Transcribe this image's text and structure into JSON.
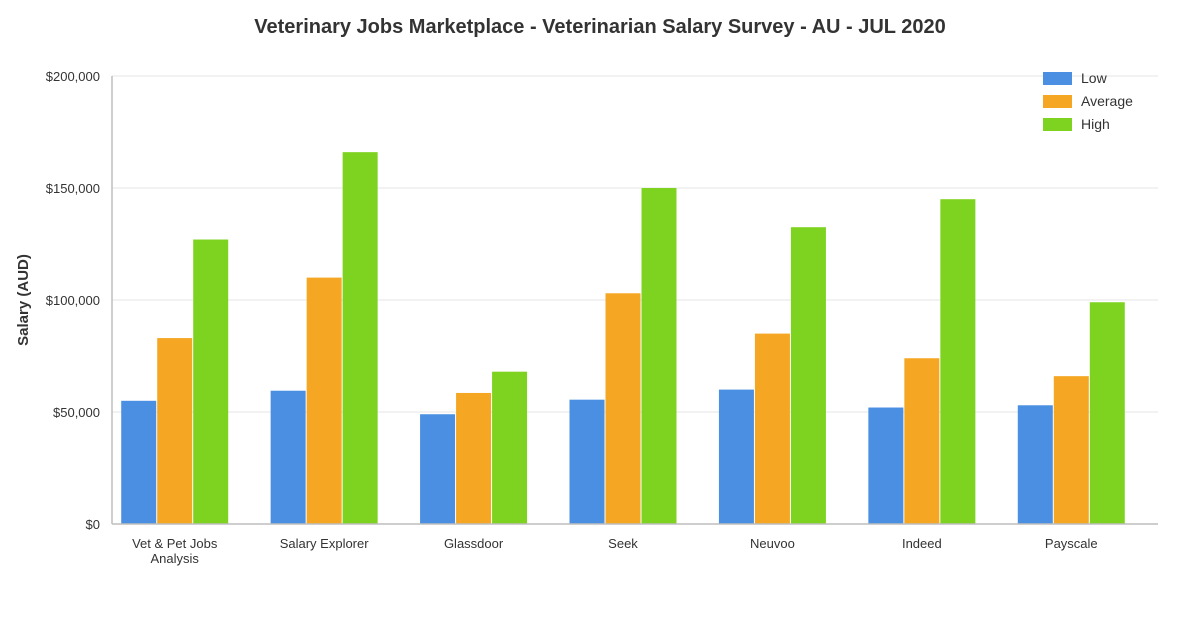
{
  "chart_data": {
    "type": "bar",
    "title": "Veterinary Jobs Marketplace - Veterinarian Salary Survey - AU - JUL 2020",
    "xlabel": "",
    "ylabel": "Salary (AUD)",
    "ylim": [
      0,
      200000
    ],
    "yticks": [
      {
        "value": 0,
        "label": "$0"
      },
      {
        "value": 50000,
        "label": "$50,000"
      },
      {
        "value": 100000,
        "label": "$100,000"
      },
      {
        "value": 150000,
        "label": "$150,000"
      },
      {
        "value": 200000,
        "label": "$200,000"
      }
    ],
    "categories": [
      [
        "Vet & Pet Jobs",
        "Analysis"
      ],
      [
        "Salary Explorer"
      ],
      [
        "Glassdoor"
      ],
      [
        "Seek"
      ],
      [
        "Neuvoo"
      ],
      [
        "Indeed"
      ],
      [
        "Payscale"
      ]
    ],
    "series": [
      {
        "name": "Low",
        "color": "#4a8fe2",
        "values": [
          55000,
          59500,
          49000,
          55500,
          60000,
          52000,
          53000
        ]
      },
      {
        "name": "Average",
        "color": "#f5a623",
        "values": [
          83000,
          110000,
          58500,
          103000,
          85000,
          74000,
          66000
        ]
      },
      {
        "name": "High",
        "color": "#7ed321",
        "values": [
          127000,
          166000,
          68000,
          150000,
          132500,
          145000,
          99000
        ]
      }
    ],
    "grid": true,
    "legend": "top-right"
  }
}
